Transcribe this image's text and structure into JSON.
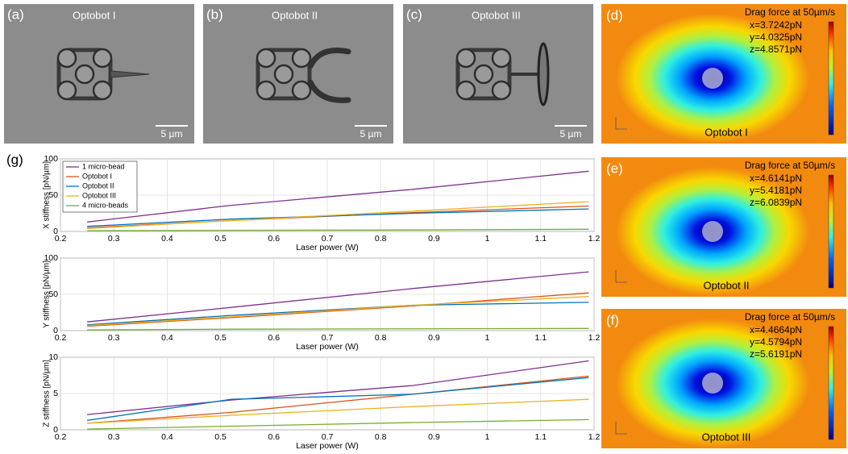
{
  "images": [
    {
      "label": "(a)",
      "title": "Optobot I",
      "scale_bar": "5 µm"
    },
    {
      "label": "(b)",
      "title": "Optobot II",
      "scale_bar": "5 µm"
    },
    {
      "label": "(c)",
      "title": "Optobot III",
      "scale_bar": "5 µm"
    }
  ],
  "simulations": [
    {
      "label": "(d)",
      "heading": "Drag force at 50µm/s",
      "forces": [
        "x=3.7242pN",
        "y=4.0325pN",
        "z=4.8571pN"
      ],
      "name": "Optobot I"
    },
    {
      "label": "(e)",
      "heading": "Drag force at 50µm/s",
      "forces": [
        "x=4.6141pN",
        "y=5.4181pN",
        "z=6.0839pN"
      ],
      "name": "Optobot II"
    },
    {
      "label": "(f)",
      "heading": "Drag force at 50µm/s",
      "forces": [
        "x=4.4664pN",
        "y=4.5794pN",
        "z=5.6191pN"
      ],
      "name": "Optobot III"
    }
  ],
  "chart_data": [
    {
      "type": "line",
      "panel_label": "(g)",
      "ylabel": "X stiffness [pN/µm]",
      "xlabel": "Laser power (W)",
      "x": [
        0.25,
        0.52,
        0.86,
        1.19
      ],
      "xlim": [
        0.2,
        1.2
      ],
      "xticks": [
        0.2,
        0.3,
        0.4,
        0.5,
        0.6,
        0.7,
        0.8,
        0.9,
        1,
        1.1,
        1.2
      ],
      "ylim": [
        0,
        100
      ],
      "yticks": [
        0,
        50,
        100
      ],
      "grid": true,
      "legend": "upper left",
      "series": [
        {
          "name": "1 micro-bead",
          "color": "#7e2f8e",
          "values": [
            13,
            36,
            58,
            83
          ]
        },
        {
          "name": "Optobot I",
          "color": "#d95319",
          "values": [
            5,
            15,
            26,
            35
          ]
        },
        {
          "name": "Optobot II",
          "color": "#0072bd",
          "values": [
            7,
            17,
            25,
            31
          ]
        },
        {
          "name": "Optobot III",
          "color": "#edb120",
          "values": [
            4,
            15,
            28,
            41
          ]
        },
        {
          "name": "4 micro-beads",
          "color": "#77ac30",
          "values": [
            1,
            1.5,
            2,
            3
          ]
        }
      ]
    },
    {
      "type": "line",
      "ylabel": "Y stiffness [pN/µm]",
      "xlabel": "Laser power (W)",
      "x": [
        0.25,
        0.52,
        0.86,
        1.19
      ],
      "xlim": [
        0.2,
        1.2
      ],
      "xticks": [
        0.2,
        0.3,
        0.4,
        0.5,
        0.6,
        0.7,
        0.8,
        0.9,
        1,
        1.1,
        1.2
      ],
      "ylim": [
        0,
        100
      ],
      "yticks": [
        0,
        50,
        100
      ],
      "grid": true,
      "series": [
        {
          "color": "#7e2f8e",
          "values": [
            12,
            32,
            58,
            81
          ]
        },
        {
          "color": "#d95319",
          "values": [
            6,
            18,
            34,
            52
          ]
        },
        {
          "color": "#0072bd",
          "values": [
            8,
            21,
            35,
            39
          ]
        },
        {
          "color": "#edb120",
          "values": [
            7,
            19,
            35,
            47
          ]
        },
        {
          "color": "#77ac30",
          "values": [
            1,
            2,
            2.5,
            3
          ]
        }
      ]
    },
    {
      "type": "line",
      "ylabel": "Z stiffness [pN/µm]",
      "xlabel": "Laser power (W)",
      "x": [
        0.25,
        0.52,
        0.86,
        1.19
      ],
      "xlim": [
        0.2,
        1.2
      ],
      "xticks": [
        0.2,
        0.3,
        0.4,
        0.5,
        0.6,
        0.7,
        0.8,
        0.9,
        1,
        1.1,
        1.2
      ],
      "ylim": [
        0,
        10
      ],
      "yticks": [
        0,
        5,
        10
      ],
      "grid": true,
      "series": [
        {
          "color": "#7e2f8e",
          "values": [
            2.1,
            4.1,
            6.1,
            9.5
          ]
        },
        {
          "color": "#d95319",
          "values": [
            0.9,
            2.4,
            4.9,
            7.4
          ]
        },
        {
          "color": "#0072bd",
          "values": [
            1.3,
            4.2,
            4.9,
            7.2
          ]
        },
        {
          "color": "#edb120",
          "values": [
            0.9,
            2.0,
            3.2,
            4.2
          ]
        },
        {
          "color": "#77ac30",
          "values": [
            0.1,
            0.5,
            1.0,
            1.4
          ]
        }
      ]
    }
  ]
}
